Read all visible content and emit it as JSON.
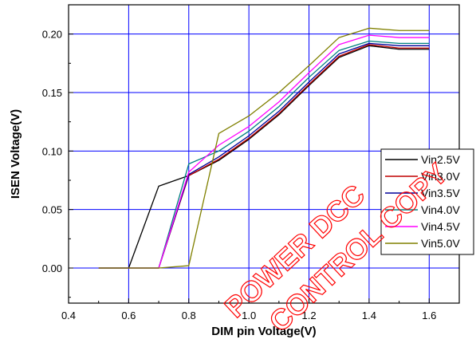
{
  "chart_data": {
    "type": "line",
    "xlabel": "DIM pin Voltage(V)",
    "ylabel": "ISEN Voltage(V)",
    "xlim": [
      0.4,
      1.7
    ],
    "ylim": [
      -0.03,
      0.225
    ],
    "x_ticks": [
      0.4,
      0.6,
      0.8,
      1.0,
      1.2,
      1.4,
      1.6
    ],
    "x_tick_labels": [
      "0.4",
      "0.6",
      "0.8",
      "1.0",
      "1.2",
      "1.4",
      "1.6"
    ],
    "y_ticks": [
      0.0,
      0.05,
      0.1,
      0.15,
      0.2
    ],
    "y_tick_labels": [
      "0.00",
      "0.05",
      "0.10",
      "0.15",
      "0.20"
    ],
    "grid": true,
    "legend_position": "right",
    "series": [
      {
        "name": "Vin2.5V",
        "color": "#000000",
        "x": [
          0.5,
          0.6,
          0.7,
          0.8,
          0.9,
          1.0,
          1.1,
          1.2,
          1.3,
          1.4,
          1.5,
          1.6
        ],
        "y": [
          0.0,
          0.0,
          0.07,
          0.079,
          0.092,
          0.11,
          0.131,
          0.156,
          0.18,
          0.19,
          0.187,
          0.187
        ]
      },
      {
        "name": "Vin3.0V",
        "color": "#c00000",
        "x": [
          0.5,
          0.6,
          0.7,
          0.8,
          0.9,
          1.0,
          1.1,
          1.2,
          1.3,
          1.4,
          1.5,
          1.6
        ],
        "y": [
          0.0,
          0.0,
          0.0,
          0.079,
          0.093,
          0.111,
          0.132,
          0.157,
          0.181,
          0.191,
          0.188,
          0.188
        ]
      },
      {
        "name": "Vin3.5V",
        "color": "#000099",
        "x": [
          0.5,
          0.6,
          0.7,
          0.8,
          0.9,
          1.0,
          1.1,
          1.2,
          1.3,
          1.4,
          1.5,
          1.6
        ],
        "y": [
          0.0,
          0.0,
          0.0,
          0.08,
          0.095,
          0.113,
          0.134,
          0.159,
          0.183,
          0.192,
          0.19,
          0.19
        ]
      },
      {
        "name": "Vin4.0V",
        "color": "#008080",
        "x": [
          0.5,
          0.6,
          0.7,
          0.8,
          0.9,
          1.0,
          1.1,
          1.2,
          1.3,
          1.4,
          1.5,
          1.6
        ],
        "y": [
          0.0,
          0.0,
          0.0,
          0.089,
          0.1,
          0.117,
          0.138,
          0.163,
          0.186,
          0.194,
          0.192,
          0.192
        ]
      },
      {
        "name": "Vin4.5V",
        "color": "#ff00ff",
        "x": [
          0.5,
          0.6,
          0.7,
          0.8,
          0.9,
          1.0,
          1.1,
          1.2,
          1.3,
          1.4,
          1.5,
          1.6
        ],
        "y": [
          0.0,
          0.0,
          0.0,
          0.082,
          0.105,
          0.121,
          0.142,
          0.167,
          0.191,
          0.199,
          0.197,
          0.197
        ]
      },
      {
        "name": "Vin5.0V",
        "color": "#808000",
        "x": [
          0.5,
          0.6,
          0.7,
          0.8,
          0.9,
          1.0,
          1.1,
          1.2,
          1.3,
          1.4,
          1.5,
          1.6
        ],
        "y": [
          0.0,
          0.0,
          0.0,
          0.002,
          0.115,
          0.13,
          0.15,
          0.173,
          0.197,
          0.205,
          0.203,
          0.203
        ]
      }
    ]
  },
  "watermark": {
    "line1": "POWER DCC",
    "line2": "CONTROL COPY"
  },
  "colors": {
    "grid": "#0000ff",
    "axis": "#000000",
    "watermark": "#ff0000"
  }
}
